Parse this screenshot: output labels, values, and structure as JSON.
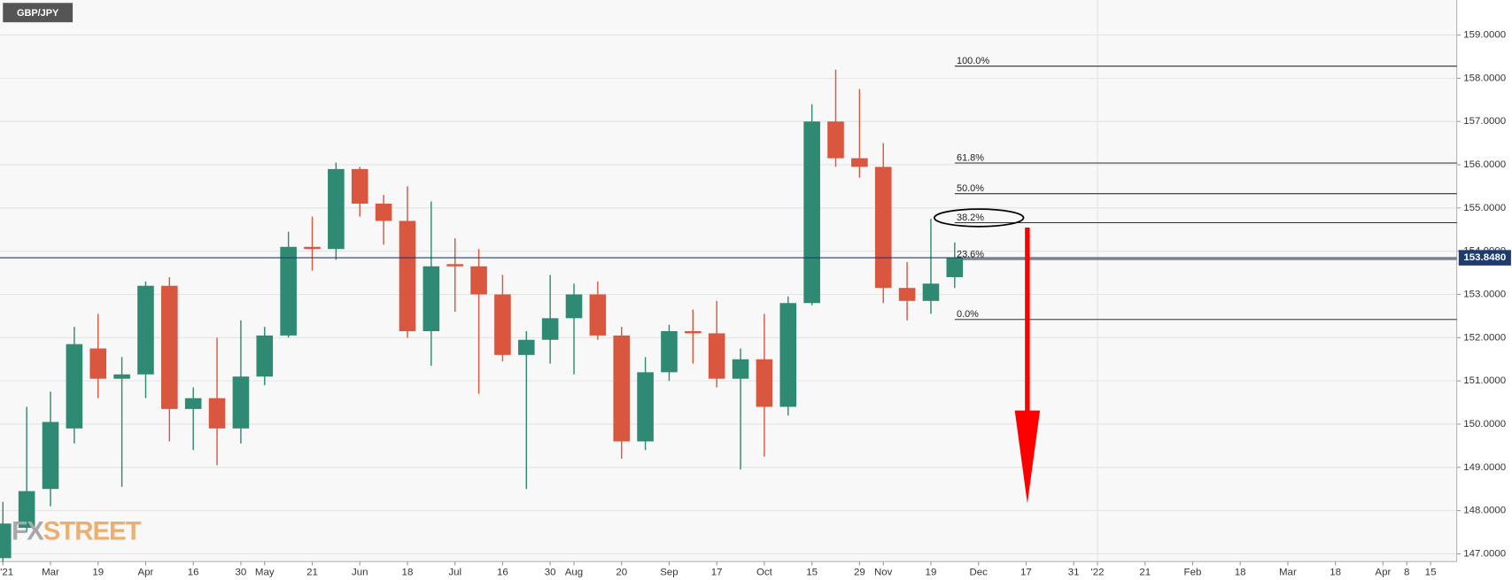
{
  "chart_data": {
    "type": "candlestick",
    "title": "GBP/JPY",
    "watermark": [
      "FX",
      "STREET"
    ],
    "up_color": "#2f8a73",
    "down_color": "#d9573f",
    "grid": true,
    "categories": [
      "'21",
      null,
      "Mar",
      null,
      "19",
      null,
      "Apr",
      null,
      "16",
      null,
      "30",
      "May",
      null,
      "21",
      null,
      "Jun",
      null,
      "18",
      null,
      "Jul",
      null,
      "16",
      null,
      "30",
      "Aug",
      null,
      "20",
      null,
      "Sep",
      null,
      "17",
      null,
      "Oct",
      null,
      "15",
      null,
      "29",
      "Nov",
      null,
      "19",
      null,
      "Dec",
      null,
      "17",
      null,
      "31",
      "'22",
      null,
      "21",
      null,
      "Feb",
      null,
      "18",
      null,
      "Mar",
      null,
      "18",
      null,
      "Apr",
      "8",
      "15",
      null
    ],
    "open": [
      146.9,
      147.6,
      148.5,
      149.9,
      151.75,
      151.05,
      151.15,
      153.2,
      150.35,
      150.6,
      149.9,
      151.1,
      152.05,
      154.1,
      154.05,
      155.9,
      155.1,
      154.7,
      152.15,
      153.7,
      153.65,
      153,
      151.6,
      151.95,
      152.45,
      153,
      152.05,
      149.6,
      151.2,
      152.15,
      152.1,
      151.05,
      151.5,
      150.4,
      152.8,
      157,
      156.15,
      155.95,
      153.15,
      152.85,
      153.4,
      null,
      null,
      null,
      null,
      null,
      null,
      null,
      null,
      null,
      null,
      null,
      null,
      null,
      null,
      null,
      null,
      null,
      null,
      null,
      null,
      null
    ],
    "high": [
      148.2,
      150.4,
      150.75,
      152.25,
      152.55,
      151.55,
      153.3,
      153.4,
      150.85,
      152,
      152.4,
      152.25,
      154.45,
      154.8,
      156.05,
      155.95,
      155.3,
      155.5,
      155.15,
      154.3,
      154.05,
      153.45,
      152.15,
      153.45,
      153.25,
      153.3,
      152.25,
      151.55,
      152.3,
      152.65,
      152.85,
      151.75,
      152.55,
      152.95,
      157.4,
      158.2,
      157.75,
      156.5,
      153.75,
      154.75,
      154.2,
      null,
      null,
      null,
      null,
      null,
      null,
      null,
      null,
      null,
      null,
      null,
      null,
      null,
      null,
      null,
      null,
      null,
      null,
      null,
      null,
      null
    ],
    "low": [
      146.8,
      147.5,
      148.1,
      149.55,
      150.6,
      148.55,
      150.6,
      149.6,
      149.4,
      149.05,
      149.55,
      150.9,
      152,
      153.55,
      153.8,
      154.8,
      154.15,
      152,
      151.35,
      152.6,
      150.7,
      151.45,
      148.5,
      151.4,
      151.15,
      151.95,
      149.2,
      149.4,
      151,
      151.4,
      150.85,
      148.95,
      149.25,
      150.2,
      152.75,
      155.95,
      155.7,
      152.8,
      152.4,
      152.55,
      153.15,
      null,
      null,
      null,
      null,
      null,
      null,
      null,
      null,
      null,
      null,
      null,
      null,
      null,
      null,
      null,
      null,
      null,
      null,
      null,
      null,
      null
    ],
    "close": [
      147.7,
      148.45,
      150.05,
      151.85,
      151.05,
      151.15,
      153.2,
      150.35,
      150.6,
      149.9,
      151.1,
      152.05,
      154.1,
      154.05,
      155.9,
      155.1,
      154.7,
      152.15,
      153.65,
      153.65,
      153,
      151.6,
      151.95,
      152.45,
      153,
      152.05,
      149.6,
      151.2,
      152.15,
      152.1,
      151.05,
      151.5,
      150.4,
      152.8,
      157,
      156.15,
      155.95,
      153.15,
      152.85,
      153.25,
      153.85,
      null,
      null,
      null,
      null,
      null,
      null,
      null,
      null,
      null,
      null,
      null,
      null,
      null,
      null,
      null,
      null,
      null,
      null,
      null,
      null,
      null
    ],
    "ylim": [
      146.82,
      159.81
    ],
    "yticks": [
      {
        "value": 147,
        "label": "147.0000"
      },
      {
        "value": 148,
        "label": "148.0000"
      },
      {
        "value": 149,
        "label": "149.0000"
      },
      {
        "value": 150,
        "label": "150.0000"
      },
      {
        "value": 151,
        "label": "151.0000"
      },
      {
        "value": 152,
        "label": "152.0000"
      },
      {
        "value": 153,
        "label": "153.0000"
      },
      {
        "value": 154,
        "label": "154.0000"
      },
      {
        "value": 155,
        "label": "155.0000"
      },
      {
        "value": 156,
        "label": "156.0000"
      },
      {
        "value": 157,
        "label": "157.0000"
      },
      {
        "value": 158,
        "label": "158.0000"
      },
      {
        "value": 159,
        "label": "159.0000"
      }
    ],
    "last_price": {
      "value": 153.848,
      "label": "153.8480"
    },
    "fib_levels": [
      {
        "label": "100.0%",
        "value": 158.28
      },
      {
        "label": "61.8%",
        "value": 156.04
      },
      {
        "label": "50.0%",
        "value": 155.33
      },
      {
        "label": "38.2%",
        "value": 154.66
      },
      {
        "label": "23.6%",
        "value": 153.81
      },
      {
        "label": "0.0%",
        "value": 152.42
      }
    ]
  }
}
